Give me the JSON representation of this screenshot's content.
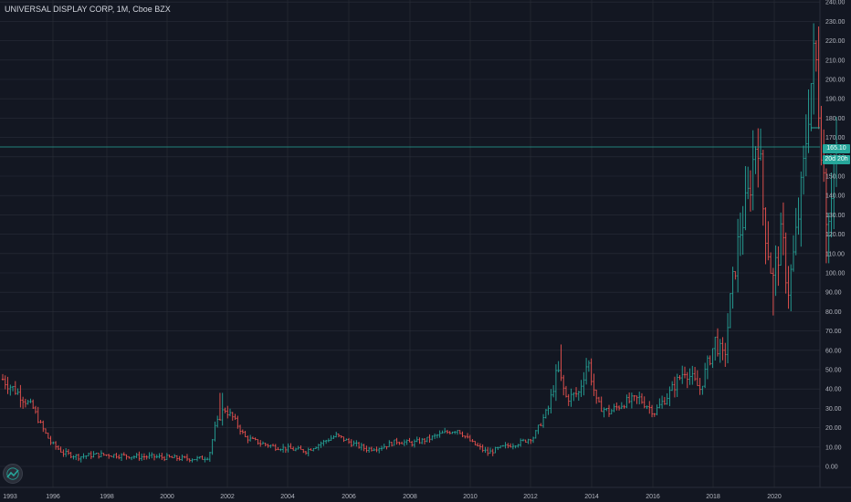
{
  "header": {
    "title": "UNIVERSAL DISPLAY CORP, 1M, Cboe BZX"
  },
  "colors": {
    "background": "#131722",
    "up": "#26a69a",
    "down": "#ef5350",
    "grid": "#2a2e39",
    "text": "#b2b5be"
  },
  "price_label": {
    "price": "165.10",
    "countdown": "20d 20h"
  },
  "logo": {
    "icon": "tradingview-logo-icon"
  },
  "chart_data": {
    "type": "ohlc",
    "y_ticks": [
      "240.00",
      "230.00",
      "220.00",
      "210.00",
      "200.00",
      "190.00",
      "180.00",
      "170.00",
      "160.00",
      "150.00",
      "140.00",
      "130.00",
      "120.00",
      "110.00",
      "100.00",
      "90.00",
      "80.00",
      "70.00",
      "60.00",
      "50.00",
      "40.00",
      "30.00",
      "20.00",
      "10.00",
      "0.00"
    ],
    "x_ticks": [
      "1993",
      "1996",
      "1998",
      "2000",
      "2002",
      "2004",
      "2006",
      "2008",
      "2010",
      "2012",
      "2014",
      "2016",
      "2018",
      "2020"
    ],
    "ylim": [
      -2,
      240
    ],
    "xlim": [
      1993.0,
      2021.5
    ],
    "last_price": 165.1,
    "grid": true,
    "series_points": [
      [
        1993.0,
        45
      ],
      [
        1993.5,
        38
      ],
      [
        1994.0,
        30
      ],
      [
        1994.3,
        20
      ],
      [
        1994.6,
        12
      ],
      [
        1995.0,
        7
      ],
      [
        1995.5,
        5
      ],
      [
        1996.0,
        6
      ],
      [
        1996.5,
        6
      ],
      [
        1997.0,
        5.5
      ],
      [
        1997.5,
        5
      ],
      [
        1998.0,
        5
      ],
      [
        1998.5,
        4.5
      ],
      [
        1999.0,
        4
      ],
      [
        1999.5,
        4
      ],
      [
        1999.8,
        5
      ],
      [
        2000.0,
        20
      ],
      [
        2000.3,
        30
      ],
      [
        2000.6,
        25
      ],
      [
        2001.0,
        15
      ],
      [
        2001.5,
        12
      ],
      [
        2002.0,
        10
      ],
      [
        2002.5,
        9
      ],
      [
        2003.0,
        8
      ],
      [
        2003.5,
        12
      ],
      [
        2004.0,
        16
      ],
      [
        2004.5,
        12
      ],
      [
        2005.0,
        9
      ],
      [
        2005.5,
        10
      ],
      [
        2006.0,
        13
      ],
      [
        2006.5,
        12
      ],
      [
        2007.0,
        14
      ],
      [
        2007.5,
        17
      ],
      [
        2008.0,
        19
      ],
      [
        2008.5,
        12
      ],
      [
        2009.0,
        7
      ],
      [
        2009.5,
        10
      ],
      [
        2010.0,
        12
      ],
      [
        2010.5,
        15
      ],
      [
        2011.0,
        30
      ],
      [
        2011.3,
        50
      ],
      [
        2011.6,
        35
      ],
      [
        2012.0,
        38
      ],
      [
        2012.3,
        55
      ],
      [
        2012.6,
        32
      ],
      [
        2013.0,
        28
      ],
      [
        2013.5,
        33
      ],
      [
        2014.0,
        35
      ],
      [
        2014.5,
        28
      ],
      [
        2015.0,
        38
      ],
      [
        2015.5,
        50
      ],
      [
        2016.0,
        40
      ],
      [
        2016.5,
        65
      ],
      [
        2016.8,
        55
      ],
      [
        2017.0,
        85
      ],
      [
        2017.3,
        120
      ],
      [
        2017.6,
        140
      ],
      [
        2017.9,
        175
      ],
      [
        2018.1,
        130
      ],
      [
        2018.4,
        95
      ],
      [
        2018.7,
        120
      ],
      [
        2018.9,
        90
      ],
      [
        2019.1,
        110
      ],
      [
        2019.4,
        150
      ],
      [
        2019.6,
        190
      ],
      [
        2019.8,
        215
      ],
      [
        2020.0,
        170
      ],
      [
        2020.2,
        125
      ],
      [
        2020.4,
        155
      ],
      [
        2020.5,
        165
      ]
    ]
  }
}
